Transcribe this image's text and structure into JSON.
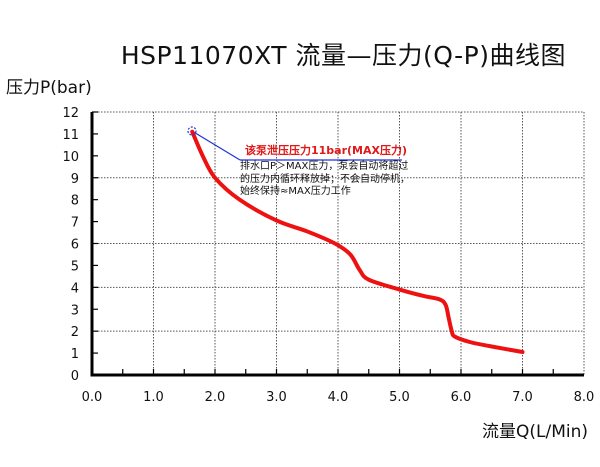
{
  "title": "HSP11070XT 流量—压力(Q-P)曲线图",
  "axes": {
    "ylabel": "压力P(bar)",
    "xlabel": "流量Q(L/Min)",
    "y_ticks": [
      "0",
      "1",
      "2",
      "3",
      "4",
      "5",
      "6",
      "7",
      "8",
      "9",
      "10",
      "11",
      "12"
    ],
    "x_ticks": [
      "0.0",
      "1.0",
      "2.0",
      "3.0",
      "4.0",
      "5.0",
      "6.0",
      "7.0",
      "8.0"
    ]
  },
  "annotation": {
    "title": "该泵泄压压力11bar(MAX压力)",
    "lines": [
      "排水口P＞MAX压力，泵会自动将超过",
      "的压力内循环释放掉；不会自动停机，",
      "始终保持≈MAX压力工作"
    ]
  },
  "colors": {
    "curve": "#ee1111",
    "leader": "#1a33dd",
    "annotation_title": "#e01818",
    "axis": "#000000",
    "grid": "#555555"
  },
  "chart_data": {
    "type": "line",
    "title": "HSP11070XT 流量—压力(Q-P)曲线图",
    "xlabel": "流量Q(L/Min)",
    "ylabel": "压力P(bar)",
    "xlim": [
      0,
      8
    ],
    "ylim": [
      0,
      12
    ],
    "x_ticks": [
      0,
      1,
      2,
      3,
      4,
      5,
      6,
      7,
      8
    ],
    "y_ticks": [
      0,
      1,
      2,
      3,
      4,
      5,
      6,
      7,
      8,
      9,
      10,
      11,
      12
    ],
    "grid": {
      "vertical": [
        1,
        2,
        3,
        4,
        5,
        6,
        7,
        8
      ],
      "horizontal": [
        2,
        4,
        6,
        9,
        12
      ],
      "style": "dotted"
    },
    "legend": null,
    "series": [
      {
        "name": "Q-P curve",
        "x": [
          1.63,
          1.8,
          2.0,
          2.4,
          3.0,
          3.5,
          3.95,
          4.2,
          4.35,
          4.5,
          5.0,
          5.4,
          5.65,
          5.75,
          5.8,
          5.85,
          5.9,
          6.15,
          6.5,
          7.0
        ],
        "y": [
          11.1,
          10.0,
          9.0,
          8.0,
          7.05,
          6.55,
          6.0,
          5.5,
          4.8,
          4.35,
          3.9,
          3.6,
          3.45,
          3.2,
          2.6,
          2.0,
          1.75,
          1.5,
          1.3,
          1.05
        ]
      }
    ],
    "annotations": [
      {
        "at": [
          1.63,
          11.1
        ],
        "marker": "blue dashed circle",
        "text": "该泵泄压压力11bar(MAX压力)",
        "subtext": "排水口P＞MAX压力，泵会自动将超过的压力内循环释放掉；不会自动停机，始终保持≈MAX压力工作"
      }
    ]
  }
}
